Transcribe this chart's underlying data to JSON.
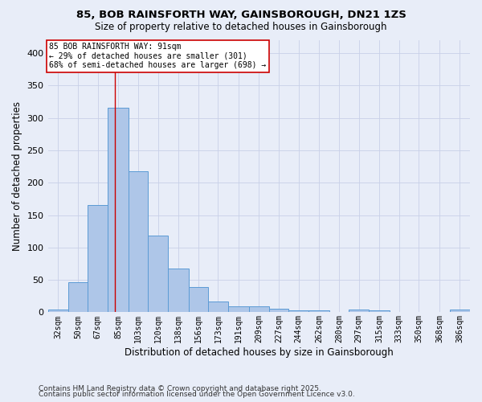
{
  "title1": "85, BOB RAINSFORTH WAY, GAINSBOROUGH, DN21 1ZS",
  "title2": "Size of property relative to detached houses in Gainsborough",
  "xlabel": "Distribution of detached houses by size in Gainsborough",
  "ylabel": "Number of detached properties",
  "bin_labels": [
    "32sqm",
    "50sqm",
    "67sqm",
    "85sqm",
    "103sqm",
    "120sqm",
    "138sqm",
    "156sqm",
    "173sqm",
    "191sqm",
    "209sqm",
    "227sqm",
    "244sqm",
    "262sqm",
    "280sqm",
    "297sqm",
    "315sqm",
    "333sqm",
    "350sqm",
    "368sqm",
    "386sqm"
  ],
  "bar_values": [
    4,
    47,
    165,
    316,
    218,
    119,
    67,
    39,
    17,
    9,
    9,
    5,
    3,
    3,
    0,
    4,
    3,
    0,
    0,
    0,
    4
  ],
  "bar_color": "#aec6e8",
  "bar_edge_color": "#5b9bd5",
  "vline_x": 91,
  "vline_color": "#cc0000",
  "annotation_text": "85 BOB RAINSFORTH WAY: 91sqm\n← 29% of detached houses are smaller (301)\n68% of semi-detached houses are larger (698) →",
  "annotation_box_color": "#ffffff",
  "annotation_box_edge": "#cc0000",
  "grid_color": "#c8d0e8",
  "background_color": "#e8edf8",
  "ylim": [
    0,
    420
  ],
  "yticks": [
    0,
    50,
    100,
    150,
    200,
    250,
    300,
    350,
    400
  ],
  "footer_line1": "Contains HM Land Registry data © Crown copyright and database right 2025.",
  "footer_line2": "Contains public sector information licensed under the Open Government Licence v3.0.",
  "bin_edges": [
    32,
    50,
    67,
    85,
    103,
    120,
    138,
    156,
    173,
    191,
    209,
    227,
    244,
    262,
    280,
    297,
    315,
    333,
    350,
    368,
    386,
    404
  ]
}
